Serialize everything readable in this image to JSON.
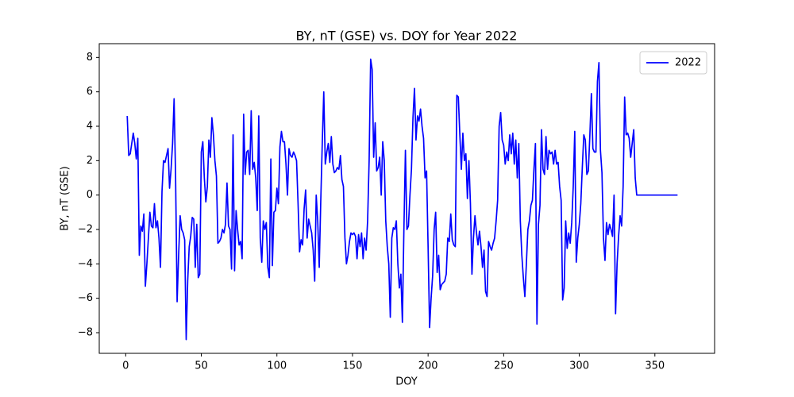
{
  "chart_data": {
    "type": "line",
    "title": "BY, nT (GSE) vs. DOY for Year 2022",
    "x_label": "DOY",
    "y_label": "BY, nT (GSE)",
    "x": [
      1,
      2,
      3,
      4,
      5,
      6,
      7,
      8,
      9,
      10,
      11,
      12,
      13,
      14,
      15,
      16,
      17,
      18,
      19,
      20,
      21,
      22,
      23,
      24,
      25,
      26,
      27,
      28,
      29,
      30,
      31,
      32,
      33,
      34,
      35,
      36,
      37,
      38,
      39,
      40,
      41,
      42,
      43,
      44,
      45,
      46,
      47,
      48,
      49,
      50,
      51,
      52,
      53,
      54,
      55,
      56,
      57,
      58,
      59,
      60,
      61,
      62,
      63,
      64,
      65,
      66,
      67,
      68,
      69,
      70,
      71,
      72,
      73,
      74,
      75,
      76,
      77,
      78,
      79,
      80,
      81,
      82,
      83,
      84,
      85,
      86,
      87,
      88,
      89,
      90,
      91,
      92,
      93,
      94,
      95,
      96,
      97,
      98,
      99,
      100,
      101,
      102,
      103,
      104,
      105,
      106,
      107,
      108,
      109,
      110,
      111,
      112,
      113,
      114,
      115,
      116,
      117,
      118,
      119,
      120,
      121,
      122,
      123,
      124,
      125,
      126,
      127,
      128,
      129,
      130,
      131,
      132,
      133,
      134,
      135,
      136,
      137,
      138,
      139,
      140,
      141,
      142,
      143,
      144,
      145,
      146,
      147,
      148,
      149,
      150,
      151,
      152,
      153,
      154,
      155,
      156,
      157,
      158,
      159,
      160,
      161,
      162,
      163,
      164,
      165,
      166,
      167,
      168,
      169,
      170,
      171,
      172,
      173,
      174,
      175,
      176,
      177,
      178,
      179,
      180,
      181,
      182,
      183,
      184,
      185,
      186,
      187,
      188,
      189,
      190,
      191,
      192,
      193,
      194,
      195,
      196,
      197,
      198,
      199,
      200,
      201,
      202,
      203,
      204,
      205,
      206,
      207,
      208,
      209,
      210,
      211,
      212,
      213,
      214,
      215,
      216,
      217,
      218,
      219,
      220,
      221,
      222,
      223,
      224,
      225,
      226,
      227,
      228,
      229,
      230,
      231,
      232,
      233,
      234,
      235,
      236,
      237,
      238,
      239,
      240,
      241,
      242,
      243,
      244,
      245,
      246,
      247,
      248,
      249,
      250,
      251,
      252,
      253,
      254,
      255,
      256,
      257,
      258,
      259,
      260,
      261,
      262,
      263,
      264,
      265,
      266,
      267,
      268,
      269,
      270,
      271,
      272,
      273,
      274,
      275,
      276,
      277,
      278,
      279,
      280,
      281,
      282,
      283,
      284,
      285,
      286,
      287,
      288,
      289,
      290,
      291,
      292,
      293,
      294,
      295,
      296,
      297,
      298,
      299,
      300,
      301,
      302,
      303,
      304,
      305,
      306,
      307,
      308,
      309,
      310,
      311,
      312,
      313,
      314,
      315,
      316,
      317,
      318,
      319,
      320,
      321,
      322,
      323,
      324,
      325,
      326,
      327,
      328,
      329,
      330,
      331,
      332,
      333,
      334,
      335,
      336,
      337,
      338,
      339,
      340,
      341,
      342,
      343,
      344,
      345,
      346,
      347,
      348,
      349,
      350,
      351,
      352,
      353,
      354,
      355,
      356,
      357,
      358,
      359,
      360,
      361,
      362,
      363,
      364,
      365
    ],
    "series": [
      {
        "name": "2022",
        "color": "#0000ff",
        "values": [
          4.6,
          2.3,
          2.4,
          3.0,
          3.6,
          3.0,
          2.1,
          3.3,
          -3.5,
          -1.8,
          -2.1,
          -1.1,
          -5.3,
          -4.0,
          -2.5,
          -1.0,
          -1.8,
          -1.9,
          -0.5,
          -1.9,
          -1.5,
          -2.5,
          -4.2,
          0.2,
          2.0,
          1.9,
          2.3,
          2.7,
          0.4,
          1.5,
          3.0,
          5.6,
          1.0,
          -6.2,
          -3.5,
          -1.2,
          -2.0,
          -2.2,
          -2.6,
          -8.4,
          -5.0,
          -3.0,
          -2.4,
          -1.3,
          -1.4,
          -4.2,
          -1.7,
          -4.8,
          -4.6,
          2.5,
          3.1,
          1.0,
          -0.4,
          0.5,
          3.2,
          2.2,
          4.5,
          3.5,
          2.0,
          1.1,
          -2.8,
          -2.7,
          -2.5,
          -2.0,
          -2.2,
          -1.7,
          0.7,
          -1.8,
          -2.0,
          -4.3,
          3.5,
          -4.4,
          -0.9,
          -2.0,
          -2.9,
          -2.7,
          -3.7,
          4.7,
          1.2,
          2.5,
          2.6,
          1.2,
          4.9,
          1.5,
          1.9,
          1.0,
          -0.9,
          4.6,
          -2.5,
          -3.9,
          -1.5,
          -2.0,
          -1.6,
          -4.2,
          -4.8,
          2.1,
          -4.1,
          -1.0,
          -0.9,
          0.4,
          -0.5,
          2.8,
          3.7,
          3.1,
          3.1,
          1.8,
          0.0,
          2.7,
          2.3,
          2.2,
          2.5,
          2.3,
          2.0,
          -0.5,
          -3.3,
          -2.6,
          -2.9,
          -0.8,
          0.3,
          -2.5,
          -1.4,
          -1.8,
          -2.2,
          -3.2,
          -5.0,
          0.0,
          -1.5,
          -4.2,
          -0.4,
          3.0,
          6.0,
          1.8,
          2.5,
          3.0,
          1.9,
          3.4,
          1.8,
          1.3,
          1.4,
          1.6,
          1.5,
          2.3,
          0.9,
          0.5,
          -2.5,
          -4.0,
          -3.5,
          -2.7,
          -2.2,
          -2.3,
          -2.2,
          -2.4,
          -3.7,
          -2.3,
          -3.0,
          -2.2,
          -3.7,
          -2.5,
          -3.2,
          -1.5,
          2.0,
          7.9,
          7.3,
          2.2,
          4.2,
          1.4,
          1.6,
          2.2,
          0.0,
          3.1,
          2.0,
          -1.5,
          -3.0,
          -4.0,
          -7.1,
          -2.5,
          -1.9,
          -2.0,
          -1.5,
          -4.0,
          -5.4,
          -4.6,
          -7.4,
          -2.0,
          2.6,
          -2.0,
          -1.8,
          0.0,
          1.5,
          4.5,
          6.2,
          3.2,
          4.6,
          4.3,
          5.0,
          4.0,
          3.3,
          1.0,
          1.4,
          -3.0,
          -7.7,
          -6.0,
          -4.7,
          -2.0,
          -1.0,
          -4.5,
          -3.5,
          -5.5,
          -5.2,
          -5.1,
          -5.0,
          -4.6,
          -2.5,
          -2.7,
          -1.1,
          -2.6,
          -2.9,
          -3.0,
          5.8,
          5.7,
          3.5,
          1.5,
          3.6,
          2.0,
          2.4,
          -0.2,
          2.0,
          -0.5,
          -4.6,
          -2.5,
          -1.2,
          -2.2,
          -2.9,
          -2.1,
          -3.0,
          -4.2,
          -3.2,
          -5.6,
          -5.9,
          -2.7,
          -3.0,
          -3.2,
          -2.8,
          -2.5,
          -1.5,
          -0.3,
          4.0,
          4.8,
          3.2,
          2.9,
          1.8,
          2.5,
          2.0,
          3.5,
          2.4,
          3.6,
          1.8,
          3.2,
          1.0,
          3.0,
          -1.5,
          -3.5,
          -4.8,
          -5.9,
          -4.0,
          -2.0,
          -1.5,
          -0.6,
          -0.3,
          1.5,
          3.0,
          -7.5,
          -1.7,
          -0.6,
          3.8,
          1.5,
          1.2,
          3.4,
          1.5,
          2.6,
          2.4,
          2.5,
          1.8,
          2.6,
          1.8,
          1.9,
          0.5,
          -0.3,
          -6.1,
          -5.4,
          -1.5,
          -3.1,
          -2.2,
          -2.8,
          -1.6,
          0.5,
          3.7,
          -3.9,
          -2.5,
          -1.7,
          -0.5,
          1.6,
          3.5,
          3.2,
          1.2,
          1.4,
          3.5,
          5.9,
          2.7,
          2.5,
          2.5,
          6.6,
          7.7,
          2.6,
          1.3,
          -2.5,
          -3.8,
          -1.6,
          -2.3,
          -1.7,
          -2.0,
          -2.4,
          0.0,
          -6.9,
          -4.0,
          -2.4,
          -1.2,
          -1.8,
          0.5,
          5.7,
          3.5,
          3.6,
          3.3,
          2.2,
          3.0,
          3.8,
          1.0,
          0.0,
          0,
          0,
          0,
          0,
          0,
          0,
          0,
          0,
          0,
          0,
          0,
          0,
          0,
          0,
          0,
          0,
          0,
          0,
          0,
          0,
          0,
          0,
          0,
          0,
          0,
          0,
          0
        ]
      }
    ],
    "xlim": [
      -17.5,
      389.5
    ],
    "ylim": [
      -9.2,
      8.8
    ],
    "xticks": [
      0,
      50,
      100,
      150,
      200,
      250,
      300,
      350
    ],
    "yticks": [
      {
        "value": -8,
        "label": "−8"
      },
      {
        "value": -6,
        "label": "−6"
      },
      {
        "value": -4,
        "label": "−4"
      },
      {
        "value": -2,
        "label": "−2"
      },
      0,
      2,
      4,
      6,
      8
    ],
    "legend": "upper right",
    "grid": false
  }
}
